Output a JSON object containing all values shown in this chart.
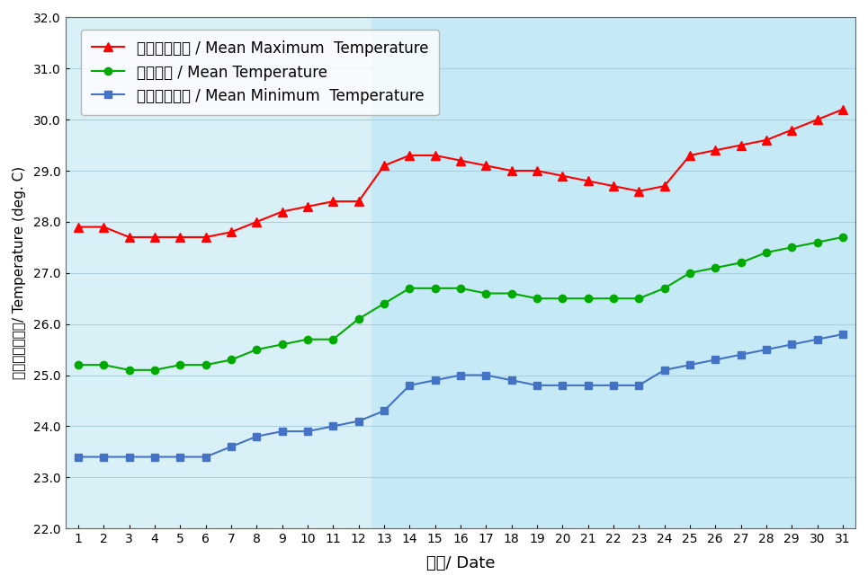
{
  "days": [
    1,
    2,
    3,
    4,
    5,
    6,
    7,
    8,
    9,
    10,
    11,
    12,
    13,
    14,
    15,
    16,
    17,
    18,
    19,
    20,
    21,
    22,
    23,
    24,
    25,
    26,
    27,
    28,
    29,
    30,
    31
  ],
  "mean_max": [
    27.9,
    27.9,
    27.7,
    27.7,
    27.7,
    27.7,
    27.8,
    28.0,
    28.2,
    28.3,
    28.4,
    28.4,
    29.1,
    29.3,
    29.3,
    29.2,
    29.1,
    29.0,
    29.0,
    28.9,
    28.8,
    28.7,
    28.6,
    28.7,
    29.3,
    29.4,
    29.5,
    29.6,
    29.8,
    30.0,
    30.2
  ],
  "mean_temp": [
    25.2,
    25.2,
    25.1,
    25.1,
    25.2,
    25.2,
    25.3,
    25.5,
    25.6,
    25.7,
    25.7,
    26.1,
    26.4,
    26.7,
    26.7,
    26.7,
    26.6,
    26.6,
    26.5,
    26.5,
    26.5,
    26.5,
    26.5,
    26.7,
    27.0,
    27.1,
    27.2,
    27.4,
    27.5,
    27.6,
    27.7
  ],
  "mean_min": [
    23.4,
    23.4,
    23.4,
    23.4,
    23.4,
    23.4,
    23.6,
    23.8,
    23.9,
    23.9,
    24.0,
    24.1,
    24.3,
    24.8,
    24.9,
    25.0,
    25.0,
    24.9,
    24.8,
    24.8,
    24.8,
    24.8,
    24.8,
    25.1,
    25.2,
    25.3,
    25.4,
    25.5,
    25.6,
    25.7,
    25.8
  ],
  "mean_max_color": "#FF0000",
  "mean_temp_color": "#00AA00",
  "mean_min_color": "#4472C4",
  "bg_color_left": "#DAF0F7",
  "bg_color_right": "#C5E9F5",
  "legend_bg": "#FFFFFF",
  "ylabel_cn": "溫度（攝氏度）",
  "ylabel_en": "/ Temperature (deg. C)",
  "xlabel_cn": "日期",
  "xlabel_en": "/ Date",
  "ylim_min": 22.0,
  "ylim_max": 32.0,
  "yticks": [
    22.0,
    23.0,
    24.0,
    25.0,
    26.0,
    27.0,
    28.0,
    29.0,
    30.0,
    31.0,
    32.0
  ],
  "legend_max_cn": "平均最高氣溫",
  "legend_max_en": " / Mean Maximum  Temperature",
  "legend_mean_cn": "平均氣溫",
  "legend_mean_en": " / Mean Temperature",
  "legend_min_cn": "平均最低氣溫",
  "legend_min_en": " / Mean Minimum  Temperature",
  "grid_color": "#AACFE0",
  "marker_size_tri": 7,
  "marker_size_circ": 6,
  "marker_size_sq": 6,
  "linewidth": 1.5,
  "bg_split_day": 13,
  "tick_fontsize": 10,
  "label_fontsize": 13,
  "legend_fontsize": 12
}
